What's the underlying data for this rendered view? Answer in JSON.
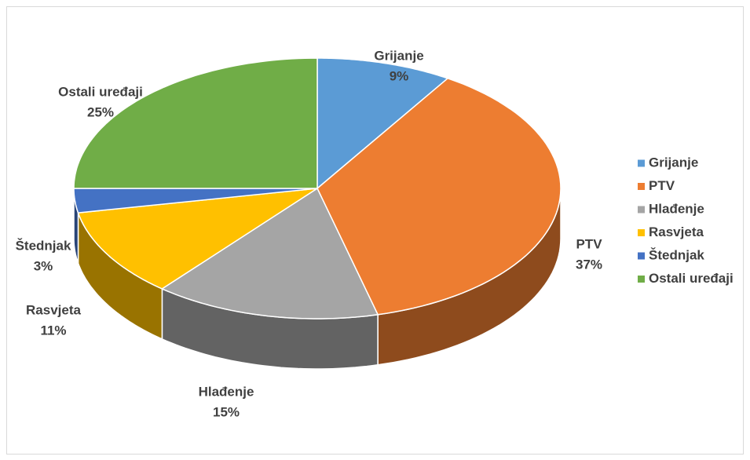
{
  "chart_data": {
    "type": "pie3d",
    "categories": [
      "Grijanje",
      "PTV",
      "Hlađenje",
      "Rasvjeta",
      "Štednjak",
      "Ostali uređaji"
    ],
    "values": [
      9,
      37,
      15,
      11,
      3,
      25
    ],
    "value_labels": [
      "9%",
      "37%",
      "15%",
      "11%",
      "3%",
      "25%"
    ],
    "colors": [
      "#5b9bd5",
      "#ed7d31",
      "#a5a5a5",
      "#ffc000",
      "#4472c4",
      "#70ad47"
    ],
    "legend": "right"
  }
}
